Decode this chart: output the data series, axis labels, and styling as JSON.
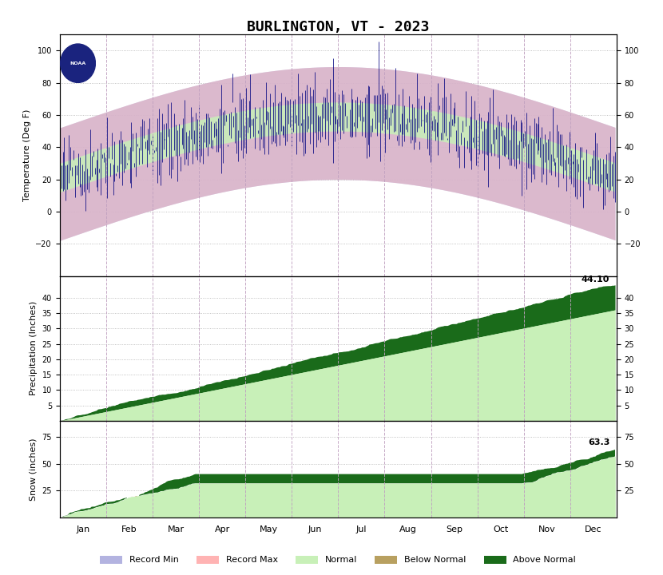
{
  "title": "BURLINGTON, VT - 2023",
  "months": [
    "Jan",
    "Feb",
    "Mar",
    "Apr",
    "May",
    "Jun",
    "Jul",
    "Aug",
    "Sep",
    "Oct",
    "Nov",
    "Dec"
  ],
  "temp_ylim": [
    -40,
    110
  ],
  "temp_yticks": [
    -20,
    0,
    20,
    40,
    60,
    80,
    100
  ],
  "precip_ylim": [
    0,
    47
  ],
  "precip_yticks": [
    5,
    10,
    15,
    20,
    25,
    30,
    35,
    40
  ],
  "snow_ylim": [
    0,
    90
  ],
  "snow_yticks": [
    25,
    50,
    75
  ],
  "color_record_min": "#b3b3e0",
  "color_record_max": "#ffb3b3",
  "color_normal": "#c8f0b8",
  "color_below_normal": "#b8a060",
  "color_above_normal": "#1a6b1a",
  "color_temp_line": "#000080",
  "color_grid": "#b0b0b0",
  "color_dashed_grid": "#c0a0c0",
  "total_precip": "44.10",
  "total_snow": "63.3",
  "fig_width": 8.3,
  "fig_height": 7.2
}
